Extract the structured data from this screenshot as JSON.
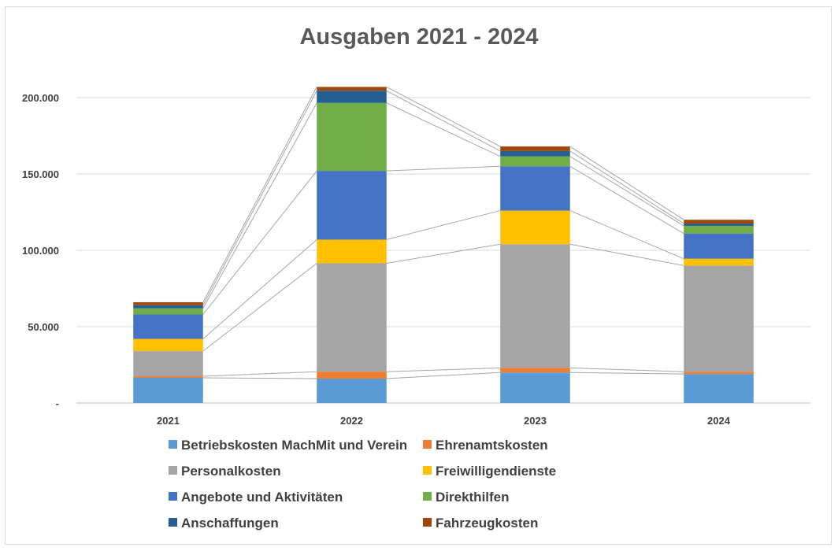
{
  "chart_data": {
    "type": "bar",
    "stacked": true,
    "title": "Ausgaben 2021 - 2024",
    "categories": [
      "2021",
      "2022",
      "2023",
      "2024"
    ],
    "ylim": [
      0,
      200000
    ],
    "yticks": [
      0,
      50000,
      100000,
      150000,
      200000
    ],
    "ytick_labels": [
      "-",
      "50.000",
      "100.000",
      "150.000",
      "200.000"
    ],
    "grid": true,
    "series_lines": true,
    "legend_position": "bottom",
    "series": [
      {
        "name": "Betriebskosten MachMit und Verein",
        "color": "#5b9bd5",
        "values": [
          16500,
          16000,
          20000,
          19000
        ]
      },
      {
        "name": "Ehrenamtskosten",
        "color": "#ed7d31",
        "values": [
          1000,
          4500,
          3000,
          1500
        ]
      },
      {
        "name": "Personalkosten",
        "color": "#a5a5a5",
        "values": [
          16500,
          71000,
          81000,
          69500
        ]
      },
      {
        "name": "Freiwilligendienste",
        "color": "#ffc000",
        "values": [
          8000,
          15500,
          22000,
          4500
        ]
      },
      {
        "name": "Angebote und Aktivitäten",
        "color": "#4472c4",
        "values": [
          16000,
          45000,
          29000,
          16500
        ]
      },
      {
        "name": "Direkthilfen",
        "color": "#70ad47",
        "values": [
          4000,
          44500,
          6500,
          5000
        ]
      },
      {
        "name": "Anschaffungen",
        "color": "#255e91",
        "values": [
          2000,
          8000,
          3500,
          1500
        ]
      },
      {
        "name": "Fahrzeugkosten",
        "color": "#9e480e",
        "values": [
          2000,
          2500,
          3000,
          2500
        ]
      }
    ]
  }
}
